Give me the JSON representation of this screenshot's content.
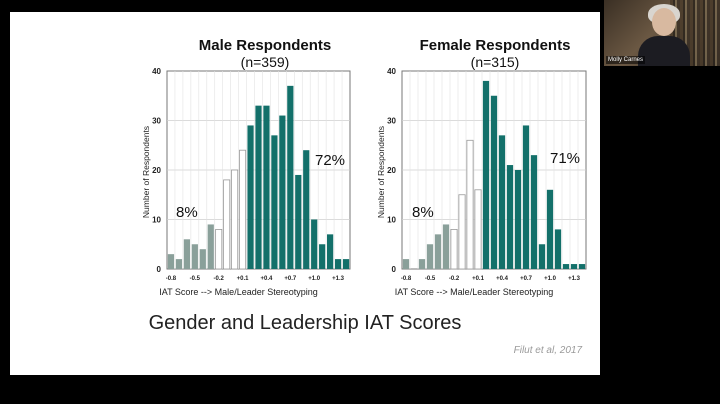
{
  "slide": {
    "title": "Gender and Leadership IAT Scores",
    "citation": "Filut et al, 2017"
  },
  "video": {
    "participant_name": "Molly Carnes"
  },
  "colors": {
    "gray": "#8aa09a",
    "white": "#ffffff",
    "teal": "#13706a",
    "outline": "#9a9a9a"
  },
  "chart_data": [
    {
      "type": "bar",
      "title": "Male Respondents",
      "subtitle": "(n=359)",
      "xlabel": "IAT Score --> Male/Leader Stereotyping",
      "ylabel": "Number of Respondents",
      "ylim": [
        0,
        40
      ],
      "yticks": [
        "0",
        "10",
        "20",
        "30",
        "40"
      ],
      "xtick_labels": [
        "-0.8",
        "-0.5",
        "-0.2",
        "+0.1",
        "+0.4",
        "+0.7",
        "+1.0",
        "+1.3"
      ],
      "values": [
        3,
        2,
        6,
        5,
        4,
        9,
        8,
        18,
        20,
        24,
        29,
        33,
        33,
        27,
        31,
        37,
        19,
        24,
        10,
        5,
        7,
        2,
        2
      ],
      "groups": [
        "gray",
        "gray",
        "gray",
        "gray",
        "gray",
        "gray",
        "white",
        "white",
        "white",
        "white",
        "teal",
        "teal",
        "teal",
        "teal",
        "teal",
        "teal",
        "teal",
        "teal",
        "teal",
        "teal",
        "teal",
        "teal",
        "teal"
      ],
      "annotations": [
        "8%",
        "72%"
      ],
      "grid": true
    },
    {
      "type": "bar",
      "title": "Female Respondents",
      "subtitle": "(n=315)",
      "xlabel": "IAT Score --> Male/Leader Stereotyping",
      "ylabel": "Number of Respondents",
      "ylim": [
        0,
        40
      ],
      "yticks": [
        "0",
        "10",
        "20",
        "30",
        "40"
      ],
      "xtick_labels": [
        "-0.8",
        "-0.5",
        "-0.2",
        "+0.1",
        "+0.4",
        "+0.7",
        "+1.0",
        "+1.3"
      ],
      "values": [
        2,
        0,
        2,
        5,
        7,
        9,
        8,
        15,
        26,
        16,
        38,
        35,
        27,
        21,
        20,
        29,
        23,
        5,
        16,
        8,
        1,
        1,
        1
      ],
      "groups": [
        "gray",
        "gray",
        "gray",
        "gray",
        "gray",
        "gray",
        "white",
        "white",
        "white",
        "white",
        "teal",
        "teal",
        "teal",
        "teal",
        "teal",
        "teal",
        "teal",
        "teal",
        "teal",
        "teal",
        "teal",
        "teal",
        "teal"
      ],
      "annotations": [
        "8%",
        "71%"
      ],
      "grid": true
    }
  ]
}
